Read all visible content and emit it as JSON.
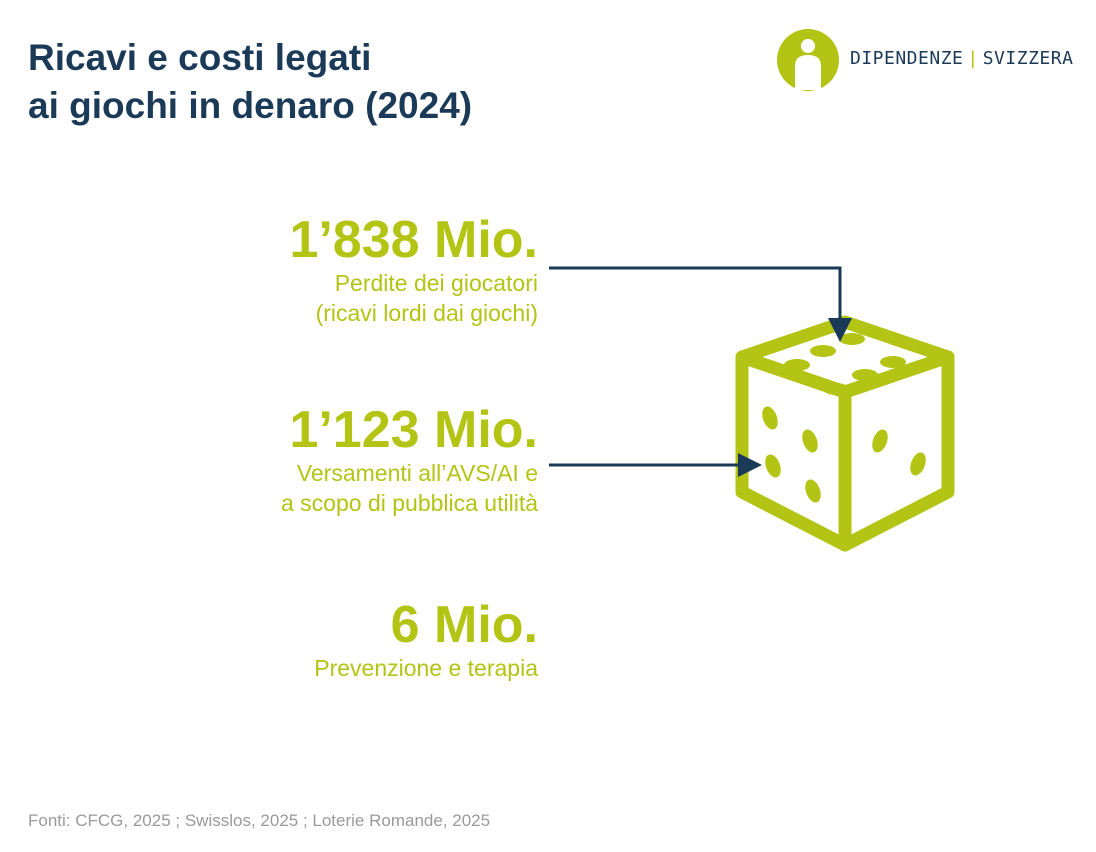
{
  "header": {
    "title_line1": "Ricavi e costi legati",
    "title_line2": "ai giochi in denaro (2024)"
  },
  "logo": {
    "name_left": "DIPENDENZE",
    "separator": "|",
    "name_right": "SVIZZERA"
  },
  "items": [
    {
      "amount": "1’838 Mio.",
      "desc_line1": "Perdite dei giocatori",
      "desc_line2": "(ricavi lordi dai giochi)"
    },
    {
      "amount": "1’123 Mio.",
      "desc_line1": "Versamenti all’AVS/AI e",
      "desc_line2": "a scopo di pubblica utilità"
    },
    {
      "amount": "6 Mio.",
      "desc_line1": "Prevenzione e terapia"
    }
  ],
  "footer": {
    "sources": "Fonti: CFCG, 2025 ; Swisslos, 2025 ; Loterie Romande, 2025"
  },
  "colors": {
    "navy": "#1b3a57",
    "lime": "#b3c414",
    "gray": "#9a9a9a"
  },
  "icons": [
    "dice-icon",
    "logo-person-icon",
    "arrow-icon"
  ]
}
